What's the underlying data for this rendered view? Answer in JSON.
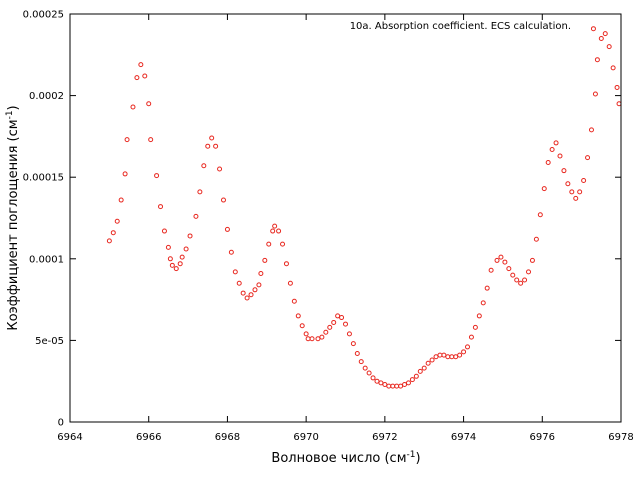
{
  "chart_data": {
    "type": "scatter",
    "legend": "10a. Absorption coefficient. ECS calculation.",
    "legend_position": "top-right",
    "xlabel": "Волновое число (см",
    "xlabel_sup": "-1",
    "xlabel_end": ")",
    "ylabel": "Коэффициент поглощения (см",
    "ylabel_sup": "-1",
    "ylabel_end": ")",
    "xlim": [
      6964,
      6978
    ],
    "ylim": [
      0,
      0.00025
    ],
    "x_ticks": [
      6964,
      6966,
      6968,
      6970,
      6972,
      6974,
      6976,
      6978
    ],
    "x_tick_labels": [
      "6964",
      "6966",
      "6968",
      "6970",
      "6972",
      "6974",
      "6976",
      "6978"
    ],
    "y_ticks": [
      0,
      5e-05,
      0.0001,
      0.00015,
      0.0002,
      0.00025
    ],
    "y_tick_labels": [
      "0",
      "5e-05",
      "0.0001",
      "0.00015",
      "0.0002",
      "0.00025"
    ],
    "grid": false,
    "marker": "open-circle",
    "series_color": "#e8271f",
    "points": [
      [
        6965.0,
        0.000111
      ],
      [
        6965.1,
        0.000116
      ],
      [
        6965.2,
        0.000123
      ],
      [
        6965.3,
        0.000136
      ],
      [
        6965.4,
        0.000152
      ],
      [
        6965.45,
        0.000173
      ],
      [
        6965.6,
        0.000193
      ],
      [
        6965.7,
        0.000211
      ],
      [
        6965.8,
        0.000219
      ],
      [
        6965.9,
        0.000212
      ],
      [
        6966.0,
        0.000195
      ],
      [
        6966.05,
        0.000173
      ],
      [
        6966.2,
        0.000151
      ],
      [
        6966.3,
        0.000132
      ],
      [
        6966.4,
        0.000117
      ],
      [
        6966.5,
        0.000107
      ],
      [
        6966.55,
        0.0001
      ],
      [
        6966.6,
        9.6e-05
      ],
      [
        6966.7,
        9.4e-05
      ],
      [
        6966.8,
        9.7e-05
      ],
      [
        6966.85,
        0.000101
      ],
      [
        6966.95,
        0.000106
      ],
      [
        6967.05,
        0.000114
      ],
      [
        6967.2,
        0.000126
      ],
      [
        6967.3,
        0.000141
      ],
      [
        6967.4,
        0.000157
      ],
      [
        6967.5,
        0.000169
      ],
      [
        6967.6,
        0.000174
      ],
      [
        6967.7,
        0.000169
      ],
      [
        6967.8,
        0.000155
      ],
      [
        6967.9,
        0.000136
      ],
      [
        6968.0,
        0.000118
      ],
      [
        6968.1,
        0.000104
      ],
      [
        6968.2,
        9.2e-05
      ],
      [
        6968.3,
        8.5e-05
      ],
      [
        6968.4,
        7.9e-05
      ],
      [
        6968.5,
        7.6e-05
      ],
      [
        6968.6,
        7.8e-05
      ],
      [
        6968.7,
        8.1e-05
      ],
      [
        6968.8,
        8.4e-05
      ],
      [
        6968.85,
        9.1e-05
      ],
      [
        6968.95,
        9.9e-05
      ],
      [
        6969.05,
        0.000109
      ],
      [
        6969.15,
        0.000117
      ],
      [
        6969.2,
        0.00012
      ],
      [
        6969.3,
        0.000117
      ],
      [
        6969.4,
        0.000109
      ],
      [
        6969.5,
        9.7e-05
      ],
      [
        6969.6,
        8.5e-05
      ],
      [
        6969.7,
        7.4e-05
      ],
      [
        6969.8,
        6.5e-05
      ],
      [
        6969.9,
        5.9e-05
      ],
      [
        6970.0,
        5.4e-05
      ],
      [
        6970.05,
        5.1e-05
      ],
      [
        6970.15,
        5.1e-05
      ],
      [
        6970.3,
        5.1e-05
      ],
      [
        6970.4,
        5.2e-05
      ],
      [
        6970.5,
        5.5e-05
      ],
      [
        6970.6,
        5.8e-05
      ],
      [
        6970.7,
        6.1e-05
      ],
      [
        6970.8,
        6.5e-05
      ],
      [
        6970.9,
        6.4e-05
      ],
      [
        6971.0,
        6e-05
      ],
      [
        6971.1,
        5.4e-05
      ],
      [
        6971.2,
        4.8e-05
      ],
      [
        6971.3,
        4.2e-05
      ],
      [
        6971.4,
        3.7e-05
      ],
      [
        6971.5,
        3.3e-05
      ],
      [
        6971.6,
        3e-05
      ],
      [
        6971.7,
        2.7e-05
      ],
      [
        6971.8,
        2.5e-05
      ],
      [
        6971.9,
        2.4e-05
      ],
      [
        6972.0,
        2.3e-05
      ],
      [
        6972.1,
        2.2e-05
      ],
      [
        6972.2,
        2.2e-05
      ],
      [
        6972.3,
        2.2e-05
      ],
      [
        6972.4,
        2.2e-05
      ],
      [
        6972.5,
        2.3e-05
      ],
      [
        6972.6,
        2.4e-05
      ],
      [
        6972.7,
        2.6e-05
      ],
      [
        6972.8,
        2.8e-05
      ],
      [
        6972.9,
        3.1e-05
      ],
      [
        6973.0,
        3.3e-05
      ],
      [
        6973.1,
        3.6e-05
      ],
      [
        6973.2,
        3.8e-05
      ],
      [
        6973.3,
        4e-05
      ],
      [
        6973.4,
        4.1e-05
      ],
      [
        6973.5,
        4.1e-05
      ],
      [
        6973.6,
        4e-05
      ],
      [
        6973.7,
        4e-05
      ],
      [
        6973.8,
        4e-05
      ],
      [
        6973.9,
        4.1e-05
      ],
      [
        6974.0,
        4.3e-05
      ],
      [
        6974.1,
        4.6e-05
      ],
      [
        6974.2,
        5.2e-05
      ],
      [
        6974.3,
        5.8e-05
      ],
      [
        6974.4,
        6.5e-05
      ],
      [
        6974.5,
        7.3e-05
      ],
      [
        6974.6,
        8.2e-05
      ],
      [
        6974.7,
        9.3e-05
      ],
      [
        6974.85,
        9.9e-05
      ],
      [
        6974.95,
        0.000101
      ],
      [
        6975.05,
        9.8e-05
      ],
      [
        6975.15,
        9.4e-05
      ],
      [
        6975.25,
        9e-05
      ],
      [
        6975.35,
        8.7e-05
      ],
      [
        6975.45,
        8.5e-05
      ],
      [
        6975.55,
        8.7e-05
      ],
      [
        6975.65,
        9.2e-05
      ],
      [
        6975.75,
        9.9e-05
      ],
      [
        6975.85,
        0.000112
      ],
      [
        6975.95,
        0.000127
      ],
      [
        6976.05,
        0.000143
      ],
      [
        6976.15,
        0.000159
      ],
      [
        6976.25,
        0.000167
      ],
      [
        6976.35,
        0.000171
      ],
      [
        6976.45,
        0.000163
      ],
      [
        6976.55,
        0.000154
      ],
      [
        6976.65,
        0.000146
      ],
      [
        6976.75,
        0.000141
      ],
      [
        6976.85,
        0.000137
      ],
      [
        6976.95,
        0.000141
      ],
      [
        6977.05,
        0.000148
      ],
      [
        6977.15,
        0.000162
      ],
      [
        6977.25,
        0.000179
      ],
      [
        6977.35,
        0.000201
      ],
      [
        6977.4,
        0.000222
      ],
      [
        6977.3,
        0.000241
      ],
      [
        6977.5,
        0.000235
      ],
      [
        6977.6,
        0.000238
      ],
      [
        6977.7,
        0.00023
      ],
      [
        6977.8,
        0.000217
      ],
      [
        6977.9,
        0.000205
      ],
      [
        6977.95,
        0.000195
      ]
    ]
  }
}
